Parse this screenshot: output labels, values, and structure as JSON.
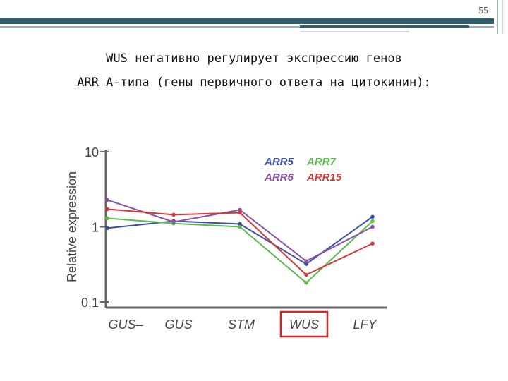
{
  "slide_number": "55",
  "title_lines": [
    "WUS негативно регулирует экспрессию генов",
    "ARR А-типа (гены первичного ответа на цитокинин):"
  ],
  "chart_data": {
    "type": "line",
    "ylabel": "Relative expression",
    "categories": [
      "GUS–",
      "GUS",
      "STM",
      "WUS",
      "LFY"
    ],
    "log_y": true,
    "ylim": [
      0.1,
      10
    ],
    "yticks": [
      0.1,
      1,
      10
    ],
    "series": [
      {
        "name": "ARR5",
        "color": "#3b4fa3",
        "values": [
          0.96,
          1.19,
          1.09,
          0.32,
          1.36
        ]
      },
      {
        "name": "ARR7",
        "color": "#5cbb4e",
        "values": [
          1.3,
          1.11,
          1.0,
          0.18,
          1.19
        ]
      },
      {
        "name": "ARR6",
        "color": "#8b52a6",
        "values": [
          2.28,
          1.16,
          1.68,
          0.35,
          1.0
        ]
      },
      {
        "name": "ARR15",
        "color": "#d23a3a",
        "values": [
          1.72,
          1.45,
          1.54,
          0.23,
          0.6
        ]
      }
    ]
  }
}
